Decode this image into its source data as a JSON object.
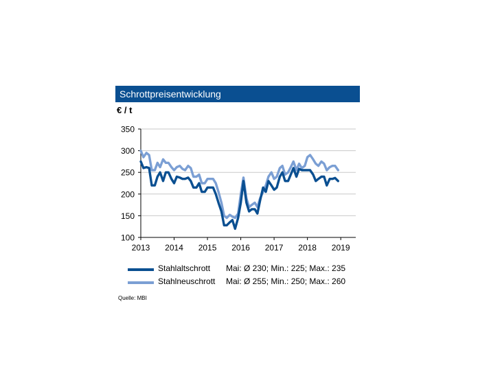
{
  "header": {
    "title": "Schrottpreisentwicklung",
    "unit": "€ / t"
  },
  "legend": [
    {
      "name": "Stahlaltschrott",
      "stats": "Mai: Ø 230; Min.: 225; Max.: 235",
      "color": "#0a4f91"
    },
    {
      "name": "Stahlneuschrott",
      "stats": "Mai: Ø 255; Min.: 250; Max.: 260",
      "color": "#7b9fd4"
    }
  ],
  "source": "Quelle:  MBI",
  "chart_data": {
    "type": "line",
    "title": "Schrottpreisentwicklung",
    "ylabel": "€ / t",
    "ylim": [
      100,
      350
    ],
    "yticks": [
      100,
      150,
      200,
      250,
      300,
      350
    ],
    "xlim": [
      2013,
      2019.45
    ],
    "xticks": [
      "2013",
      "2014",
      "2015",
      "2016",
      "2017",
      "2018",
      "2019"
    ],
    "grid": true,
    "legend_position": "bottom",
    "series": [
      {
        "name": "Stahlaltschrott",
        "color": "#0a4f91",
        "x": [
          2013.0,
          2013.08,
          2013.17,
          2013.25,
          2013.33,
          2013.42,
          2013.5,
          2013.58,
          2013.67,
          2013.75,
          2013.83,
          2013.92,
          2014.0,
          2014.08,
          2014.17,
          2014.25,
          2014.33,
          2014.42,
          2014.5,
          2014.58,
          2014.67,
          2014.75,
          2014.83,
          2014.92,
          2015.0,
          2015.08,
          2015.17,
          2015.25,
          2015.33,
          2015.42,
          2015.5,
          2015.58,
          2015.67,
          2015.75,
          2015.83,
          2015.92,
          2016.0,
          2016.08,
          2016.17,
          2016.25,
          2016.33,
          2016.42,
          2016.5,
          2016.58,
          2016.67,
          2016.75,
          2016.83,
          2016.92,
          2017.0,
          2017.08,
          2017.17,
          2017.25,
          2017.33,
          2017.42,
          2017.5,
          2017.58,
          2017.67,
          2017.75,
          2017.83,
          2017.92,
          2018.0,
          2018.08,
          2018.17,
          2018.25,
          2018.33,
          2018.42,
          2018.5,
          2018.58,
          2018.67,
          2018.75,
          2018.83,
          2018.92,
          2019.0,
          2019.08,
          2019.17,
          2019.25,
          2019.33
        ],
        "y": [
          275,
          260,
          262,
          260,
          220,
          220,
          240,
          250,
          230,
          250,
          250,
          235,
          225,
          240,
          238,
          235,
          235,
          238,
          230,
          215,
          215,
          225,
          205,
          205,
          215,
          215,
          215,
          200,
          180,
          160,
          128,
          128,
          135,
          140,
          120,
          145,
          180,
          230,
          180,
          160,
          165,
          165,
          155,
          185,
          215,
          205,
          230,
          220,
          210,
          215,
          240,
          250,
          230,
          230,
          245,
          260,
          240,
          258,
          255,
          255,
          255,
          255,
          245,
          230,
          235,
          240,
          240,
          220,
          235,
          235,
          237,
          230,
          null,
          null,
          null,
          null,
          null
        ]
      },
      {
        "name": "Stahlneuschrott",
        "color": "#7b9fd4",
        "x": [
          2013.0,
          2013.08,
          2013.17,
          2013.25,
          2013.33,
          2013.42,
          2013.5,
          2013.58,
          2013.67,
          2013.75,
          2013.83,
          2013.92,
          2014.0,
          2014.08,
          2014.17,
          2014.25,
          2014.33,
          2014.42,
          2014.5,
          2014.58,
          2014.67,
          2014.75,
          2014.83,
          2014.92,
          2015.0,
          2015.08,
          2015.17,
          2015.25,
          2015.33,
          2015.42,
          2015.5,
          2015.58,
          2015.67,
          2015.75,
          2015.83,
          2015.92,
          2016.0,
          2016.08,
          2016.17,
          2016.25,
          2016.33,
          2016.42,
          2016.5,
          2016.58,
          2016.67,
          2016.75,
          2016.83,
          2016.92,
          2017.0,
          2017.08,
          2017.17,
          2017.25,
          2017.33,
          2017.42,
          2017.5,
          2017.58,
          2017.67,
          2017.75,
          2017.83,
          2017.92,
          2018.0,
          2018.08,
          2018.17,
          2018.25,
          2018.33,
          2018.42,
          2018.5,
          2018.58,
          2018.67,
          2018.75,
          2018.83,
          2018.92
        ],
        "y": [
          300,
          285,
          295,
          290,
          255,
          255,
          272,
          262,
          280,
          272,
          272,
          262,
          255,
          262,
          265,
          258,
          255,
          265,
          260,
          240,
          240,
          245,
          225,
          225,
          235,
          235,
          235,
          225,
          205,
          180,
          150,
          145,
          152,
          148,
          145,
          155,
          200,
          238,
          190,
          170,
          175,
          180,
          170,
          190,
          205,
          220,
          240,
          250,
          235,
          240,
          260,
          265,
          245,
          250,
          262,
          275,
          255,
          270,
          260,
          265,
          285,
          290,
          280,
          270,
          265,
          275,
          270,
          255,
          262,
          265,
          265,
          255
        ]
      }
    ]
  }
}
